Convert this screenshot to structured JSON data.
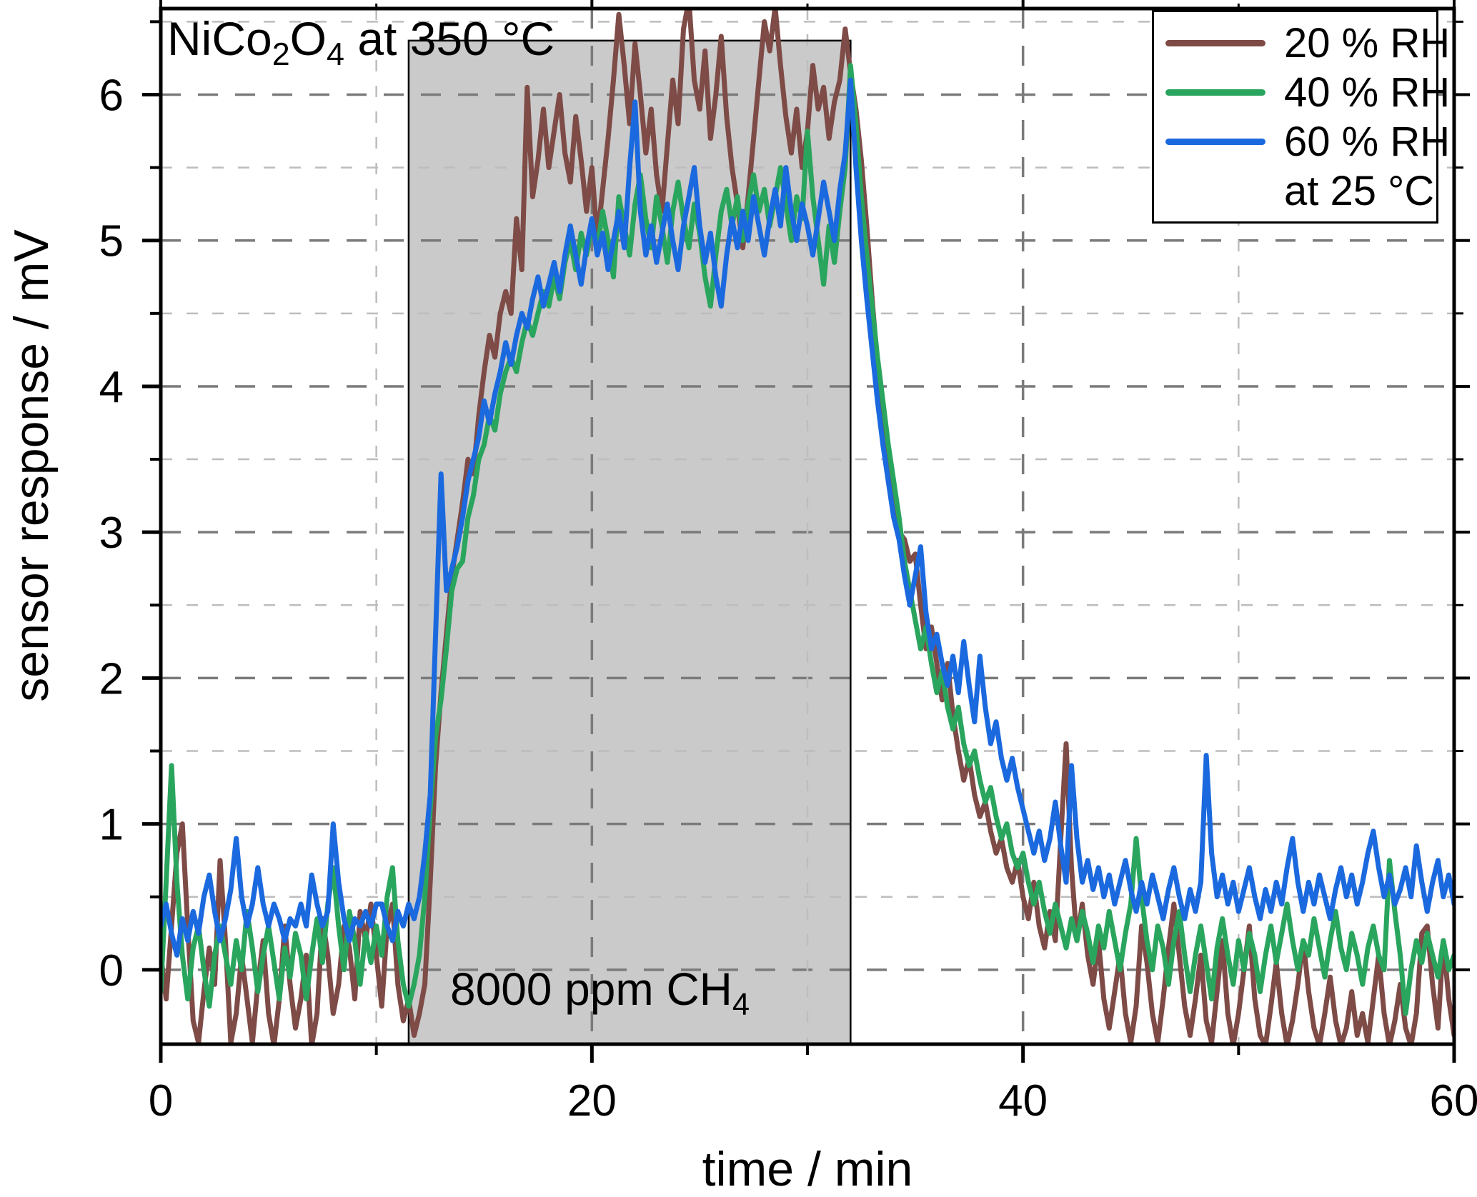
{
  "figure": {
    "title": {
      "p1": "NiCo",
      "s1": "2",
      "p2": "O",
      "s2": "4",
      "p3": " at 350 °C"
    },
    "x_axis_label": "time / min",
    "y_axis_label": "sensor response / mV",
    "annotation": {
      "p1": "8000 ppm CH",
      "s1": "4"
    },
    "legend": {
      "rows": [
        {
          "label": "20 % RH"
        },
        {
          "label": "40 % RH"
        },
        {
          "label": "60 % RH"
        },
        {
          "label": "at 25 °C"
        }
      ]
    }
  },
  "chart_data": {
    "type": "line",
    "title": "NiCo2O4 at 350 °C",
    "xlabel": "time / min",
    "ylabel": "sensor response / mV",
    "xlim": [
      0,
      60
    ],
    "ylim": [
      -0.51,
      6.59
    ],
    "x_ticks": {
      "major": [
        0,
        20,
        40,
        60
      ],
      "labels": [
        "0",
        "20",
        "40",
        "60"
      ],
      "minor": [
        10,
        30,
        50
      ]
    },
    "y_ticks": {
      "major": [
        0,
        1,
        2,
        3,
        4,
        5,
        6
      ],
      "labels": [
        "0",
        "1",
        "2",
        "3",
        "4",
        "5",
        "6"
      ],
      "minor": [
        0.5,
        1.5,
        2.5,
        3.5,
        4.5,
        5.5,
        6.5
      ]
    },
    "grid": {
      "h_major": [
        0,
        1,
        2,
        3,
        4,
        5,
        6
      ],
      "h_minor": [
        0.5,
        1.5,
        2.5,
        3.5,
        4.5,
        5.5,
        6.5
      ],
      "v_major": [
        20,
        40
      ],
      "v_minor": [
        10,
        30,
        50
      ]
    },
    "gas_region": {
      "x_start": 11.5,
      "x_end": 32,
      "y_top": 6.37,
      "fill": "#cacaca",
      "border": "#000000",
      "label": "8000 ppm CH4"
    },
    "legend_note": "at 25 °C",
    "x_start": 0,
    "x_step": 0.25,
    "series": [
      {
        "name": "20 % RH",
        "color": "#7e4b47",
        "values": [
          0.1,
          -0.2,
          0.3,
          0.8,
          1.0,
          0.3,
          -0.35,
          -0.5,
          -0.15,
          0.15,
          -0.1,
          0.75,
          0.2,
          -0.5,
          -0.3,
          0.1,
          -0.2,
          -0.5,
          -0.1,
          0.2,
          -0.3,
          -0.52,
          -0.2,
          0.3,
          -0.1,
          -0.4,
          -0.2,
          0.1,
          -0.52,
          -0.3,
          0.35,
          0.1,
          -0.3,
          -0.1,
          0.3,
          0.15,
          -0.2,
          0.4,
          0.2,
          0.45,
          0.1,
          -0.25,
          0.3,
          0.45,
          -0.1,
          -0.35,
          -0.2,
          -0.45,
          -0.3,
          -0.1,
          0.6,
          1.4,
          1.9,
          2.3,
          2.7,
          2.95,
          3.2,
          3.5,
          3.4,
          3.8,
          4.1,
          4.35,
          4.2,
          4.5,
          4.65,
          4.5,
          5.15,
          4.8,
          6.05,
          5.3,
          5.55,
          5.9,
          5.5,
          5.75,
          6.0,
          5.6,
          5.4,
          5.85,
          5.55,
          5.2,
          5.5,
          5.0,
          5.35,
          5.7,
          6.1,
          6.55,
          6.2,
          5.8,
          6.35,
          6.0,
          5.6,
          5.9,
          5.45,
          5.2,
          5.65,
          6.1,
          5.8,
          6.45,
          6.65,
          6.1,
          5.9,
          6.3,
          5.7,
          6.0,
          6.4,
          5.85,
          5.5,
          5.25,
          4.95,
          5.3,
          5.7,
          6.1,
          6.5,
          6.3,
          6.6,
          6.2,
          5.85,
          5.6,
          5.9,
          5.5,
          5.75,
          6.2,
          5.9,
          6.05,
          5.7,
          5.95,
          6.1,
          6.45,
          6.15,
          5.9,
          5.55,
          5.1,
          4.6,
          4.15,
          3.8,
          3.5,
          3.2,
          3.0,
          2.95,
          2.8,
          2.85,
          2.5,
          2.2,
          2.35,
          2.1,
          1.85,
          2.1,
          1.75,
          1.5,
          1.3,
          1.45,
          1.2,
          1.05,
          1.15,
          0.95,
          0.8,
          0.9,
          0.7,
          0.6,
          0.75,
          0.5,
          0.35,
          0.6,
          0.3,
          0.15,
          0.4,
          0.2,
          0.9,
          1.55,
          0.7,
          0.2,
          0.45,
          0.1,
          -0.1,
          0.2,
          -0.2,
          -0.4,
          -0.15,
          0.1,
          -0.3,
          -0.5,
          -0.25,
          0.3,
          0.05,
          -0.3,
          -0.5,
          -0.2,
          0.15,
          0.45,
          0.1,
          -0.25,
          -0.45,
          -0.2,
          0.1,
          -0.35,
          -0.5,
          -0.15,
          0.2,
          -0.3,
          -0.52,
          -0.3,
          0.0,
          0.3,
          -0.2,
          -0.45,
          -0.52,
          -0.25,
          0.05,
          -0.3,
          -0.52,
          -0.35,
          -0.1,
          0.2,
          -0.15,
          -0.4,
          -0.52,
          -0.3,
          -0.05,
          -0.35,
          -0.52,
          -0.4,
          -0.15,
          -0.45,
          -0.3,
          -0.5,
          -0.2,
          0.1,
          -0.3,
          -0.52,
          -0.35,
          -0.1,
          -0.4,
          -0.52,
          -0.3,
          0.25,
          0.3,
          -0.1,
          -0.4,
          0.2,
          -0.2,
          -0.45
        ]
      },
      {
        "name": "40 % RH",
        "color": "#2aa55e",
        "values": [
          -0.15,
          0.6,
          1.4,
          0.6,
          0.1,
          -0.2,
          0.15,
          0.3,
          0.0,
          -0.25,
          0.1,
          0.3,
          0.1,
          -0.1,
          0.2,
          0.0,
          0.4,
          0.15,
          -0.15,
          0.1,
          0.3,
          0.05,
          -0.2,
          0.15,
          -0.05,
          0.25,
          0.1,
          -0.2,
          0.1,
          0.35,
          0.05,
          0.45,
          0.7,
          0.3,
          0.0,
          0.4,
          0.2,
          -0.1,
          0.25,
          0.05,
          0.3,
          0.1,
          0.5,
          0.7,
          0.2,
          -0.1,
          -0.25,
          -0.1,
          0.1,
          0.5,
          1.1,
          1.6,
          1.85,
          2.2,
          2.6,
          2.75,
          2.8,
          3.1,
          3.25,
          3.5,
          3.6,
          3.8,
          3.7,
          3.95,
          4.1,
          4.2,
          4.1,
          4.3,
          4.45,
          4.35,
          4.5,
          4.65,
          4.55,
          4.75,
          4.6,
          4.85,
          5.0,
          4.8,
          5.05,
          4.9,
          5.1,
          4.95,
          5.2,
          5.0,
          4.75,
          5.3,
          5.1,
          4.9,
          5.25,
          5.45,
          5.15,
          4.95,
          5.3,
          5.1,
          4.85,
          5.2,
          5.4,
          5.15,
          4.95,
          5.25,
          5.05,
          4.75,
          4.55,
          4.9,
          5.2,
          5.35,
          5.1,
          5.3,
          5.0,
          5.25,
          5.45,
          5.2,
          5.35,
          5.1,
          5.3,
          5.5,
          5.25,
          5.0,
          5.3,
          5.15,
          5.75,
          5.3,
          5.0,
          4.7,
          5.1,
          4.85,
          5.2,
          5.5,
          6.2,
          5.8,
          5.3,
          4.9,
          4.55,
          4.2,
          3.9,
          3.6,
          3.35,
          3.1,
          2.8,
          2.6,
          2.4,
          2.2,
          2.35,
          2.1,
          1.9,
          2.05,
          1.8,
          1.65,
          1.8,
          1.55,
          1.4,
          1.5,
          1.3,
          1.15,
          1.25,
          1.05,
          0.9,
          1.0,
          0.8,
          0.7,
          0.8,
          0.6,
          0.45,
          0.6,
          0.4,
          0.25,
          0.45,
          0.3,
          0.15,
          0.35,
          0.2,
          0.4,
          0.25,
          0.05,
          0.3,
          0.15,
          0.4,
          0.2,
          0.0,
          0.25,
          0.45,
          0.9,
          0.5,
          0.2,
          0.0,
          0.3,
          0.15,
          -0.1,
          0.2,
          0.4,
          0.1,
          -0.15,
          0.1,
          0.3,
          0.05,
          -0.2,
          0.15,
          0.35,
          0.1,
          -0.1,
          0.2,
          0.0,
          0.25,
          0.1,
          -0.15,
          0.1,
          0.3,
          0.05,
          0.25,
          0.45,
          0.2,
          0.0,
          0.2,
          0.1,
          0.35,
          0.15,
          -0.05,
          0.2,
          0.4,
          0.15,
          0.0,
          0.25,
          0.1,
          -0.1,
          0.15,
          0.3,
          0.1,
          0.0,
          0.75,
          0.4,
          0.1,
          -0.3,
          0.0,
          0.2,
          0.05,
          0.25,
          0.1,
          -0.05,
          0.2,
          0.0,
          0.1
        ]
      },
      {
        "name": "60 % RH",
        "color": "#1b69de",
        "values": [
          0.3,
          0.45,
          0.25,
          0.1,
          0.35,
          0.2,
          0.4,
          0.25,
          0.5,
          0.65,
          0.4,
          0.2,
          0.35,
          0.55,
          0.9,
          0.5,
          0.3,
          0.45,
          0.7,
          0.45,
          0.3,
          0.45,
          0.35,
          0.2,
          0.35,
          0.3,
          0.45,
          0.3,
          0.65,
          0.45,
          0.3,
          0.4,
          1.0,
          0.6,
          0.35,
          0.2,
          0.35,
          0.3,
          0.4,
          0.3,
          0.45,
          0.45,
          0.3,
          0.2,
          0.4,
          0.3,
          0.45,
          0.35,
          0.5,
          0.8,
          1.2,
          2.3,
          3.4,
          2.6,
          2.75,
          2.9,
          3.1,
          3.35,
          3.5,
          3.65,
          3.9,
          3.75,
          3.95,
          4.1,
          4.3,
          4.15,
          4.35,
          4.5,
          4.4,
          4.6,
          4.75,
          4.55,
          4.7,
          4.85,
          4.65,
          4.9,
          5.1,
          4.9,
          4.7,
          4.95,
          5.15,
          4.9,
          5.05,
          4.8,
          5.0,
          5.2,
          4.95,
          5.5,
          5.95,
          5.2,
          4.9,
          5.1,
          4.85,
          5.05,
          5.25,
          5.0,
          4.8,
          5.1,
          5.3,
          5.5,
          5.1,
          4.85,
          5.05,
          4.75,
          4.55,
          4.9,
          5.15,
          4.95,
          5.2,
          5.0,
          5.3,
          5.1,
          4.9,
          5.15,
          5.35,
          5.1,
          5.5,
          5.2,
          5.0,
          5.25,
          5.1,
          4.9,
          5.15,
          5.4,
          5.2,
          5.0,
          5.35,
          5.6,
          6.1,
          5.5,
          5.0,
          4.6,
          4.25,
          3.9,
          3.6,
          3.35,
          3.1,
          2.95,
          2.7,
          2.5,
          2.7,
          2.9,
          2.45,
          2.2,
          2.3,
          2.1,
          1.95,
          2.15,
          1.9,
          2.25,
          1.95,
          1.7,
          2.15,
          1.8,
          1.55,
          1.7,
          1.45,
          1.3,
          1.45,
          1.25,
          1.1,
          0.95,
          0.8,
          0.95,
          0.75,
          0.9,
          1.15,
          0.85,
          0.6,
          1.4,
          0.9,
          0.6,
          0.75,
          0.55,
          0.7,
          0.5,
          0.65,
          0.45,
          0.6,
          0.75,
          0.55,
          0.4,
          0.6,
          0.45,
          0.65,
          0.5,
          0.35,
          0.55,
          0.7,
          0.5,
          0.35,
          0.55,
          0.4,
          0.6,
          1.47,
          0.8,
          0.5,
          0.65,
          0.45,
          0.6,
          0.4,
          0.55,
          0.7,
          0.5,
          0.35,
          0.55,
          0.4,
          0.6,
          0.45,
          0.7,
          0.9,
          0.6,
          0.4,
          0.6,
          0.45,
          0.65,
          0.5,
          0.35,
          0.55,
          0.7,
          0.5,
          0.65,
          0.45,
          0.6,
          0.8,
          0.95,
          0.7,
          0.5,
          0.65,
          0.45,
          0.55,
          0.7,
          0.5,
          0.85,
          0.6,
          0.4,
          0.6,
          0.75,
          0.5,
          0.65,
          0.45
        ]
      }
    ]
  }
}
